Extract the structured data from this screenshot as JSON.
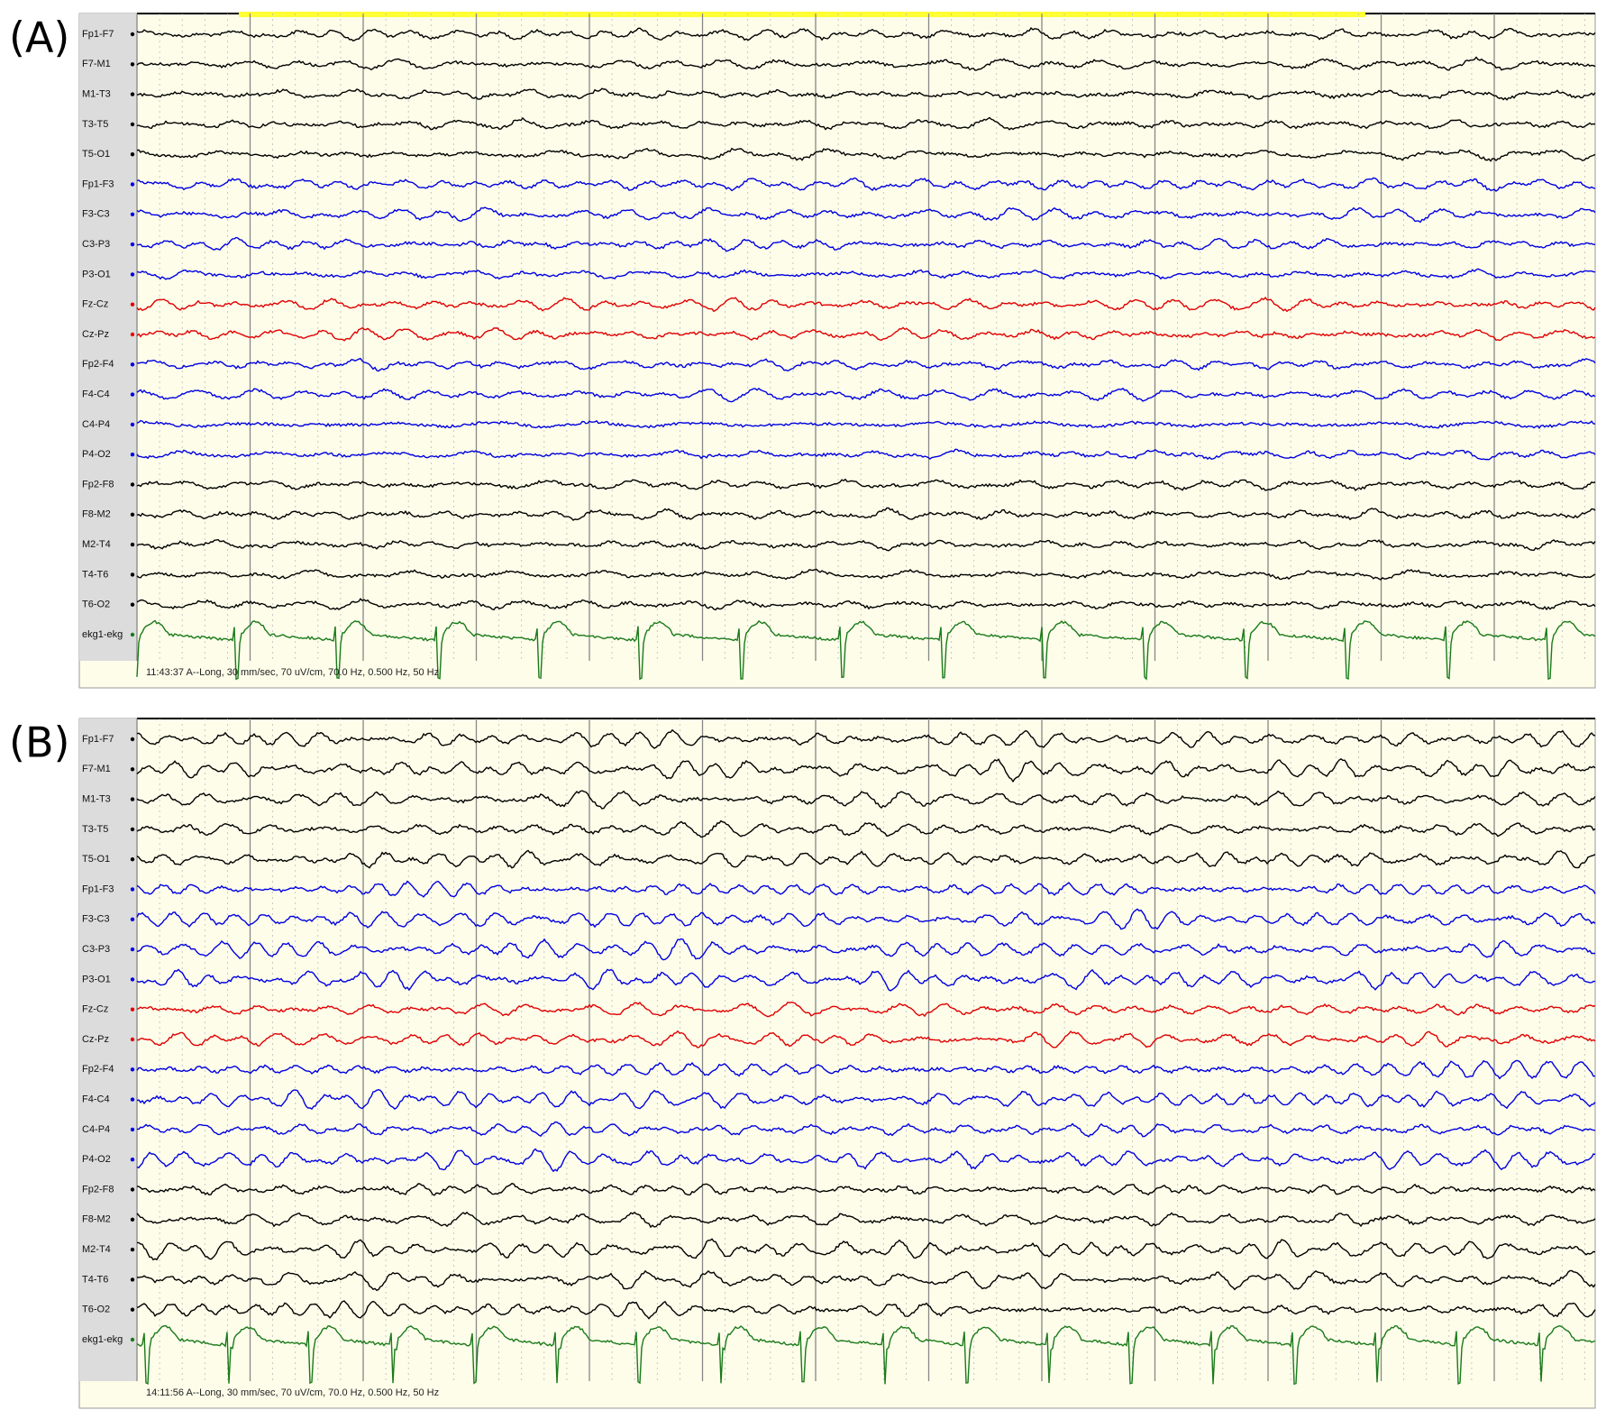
{
  "panels": [
    {
      "label": "(A)",
      "highlight_color": "#ffff33",
      "channels": [
        {
          "name": "Fp1-F7",
          "color": "#000000"
        },
        {
          "name": "F7-M1",
          "color": "#000000"
        },
        {
          "name": "M1-T3",
          "color": "#000000"
        },
        {
          "name": "T3-T5",
          "color": "#000000"
        },
        {
          "name": "T5-O1",
          "color": "#000000"
        },
        {
          "name": "Fp1-F3",
          "color": "#0000e0"
        },
        {
          "name": "F3-C3",
          "color": "#0000e0"
        },
        {
          "name": "C3-P3",
          "color": "#0000e0"
        },
        {
          "name": "P3-O1",
          "color": "#0000e0"
        },
        {
          "name": "Fz-Cz",
          "color": "#e00000"
        },
        {
          "name": "Cz-Pz",
          "color": "#e00000"
        },
        {
          "name": "Fp2-F4",
          "color": "#0000e0"
        },
        {
          "name": "F4-C4",
          "color": "#0000e0"
        },
        {
          "name": "C4-P4",
          "color": "#0000e0"
        },
        {
          "name": "P4-O2",
          "color": "#0000e0"
        },
        {
          "name": "Fp2-F8",
          "color": "#000000"
        },
        {
          "name": "F8-M2",
          "color": "#000000"
        },
        {
          "name": "M2-T4",
          "color": "#000000"
        },
        {
          "name": "T4-T6",
          "color": "#000000"
        },
        {
          "name": "T6-O2",
          "color": "#000000"
        },
        {
          "name": "ekg1-ekg",
          "color": "#1a7a1a"
        }
      ],
      "status": "11:43:37 A--Long, 30 mm/sec, 70 uV/cm, 70.0 Hz, 0.500 Hz, 50 Hz"
    },
    {
      "label": "(B)",
      "highlight_color": null,
      "channels": [
        {
          "name": "Fp1-F7",
          "color": "#000000"
        },
        {
          "name": "F7-M1",
          "color": "#000000"
        },
        {
          "name": "M1-T3",
          "color": "#000000"
        },
        {
          "name": "T3-T5",
          "color": "#000000"
        },
        {
          "name": "T5-O1",
          "color": "#000000"
        },
        {
          "name": "Fp1-F3",
          "color": "#0000e0"
        },
        {
          "name": "F3-C3",
          "color": "#0000e0"
        },
        {
          "name": "C3-P3",
          "color": "#0000e0"
        },
        {
          "name": "P3-O1",
          "color": "#0000e0"
        },
        {
          "name": "Fz-Cz",
          "color": "#e00000"
        },
        {
          "name": "Cz-Pz",
          "color": "#e00000"
        },
        {
          "name": "Fp2-F4",
          "color": "#0000e0"
        },
        {
          "name": "F4-C4",
          "color": "#0000e0"
        },
        {
          "name": "C4-P4",
          "color": "#0000e0"
        },
        {
          "name": "P4-O2",
          "color": "#0000e0"
        },
        {
          "name": "Fp2-F8",
          "color": "#000000"
        },
        {
          "name": "F8-M2",
          "color": "#000000"
        },
        {
          "name": "M2-T4",
          "color": "#000000"
        },
        {
          "name": "T4-T6",
          "color": "#000000"
        },
        {
          "name": "T6-O2",
          "color": "#000000"
        },
        {
          "name": "ekg1-ekg",
          "color": "#1a7a1a"
        }
      ],
      "status": "14:11:56 A--Long, 30 mm/sec, 70 uV/cm, 70.0 Hz, 0.500 Hz, 50 Hz"
    }
  ]
}
